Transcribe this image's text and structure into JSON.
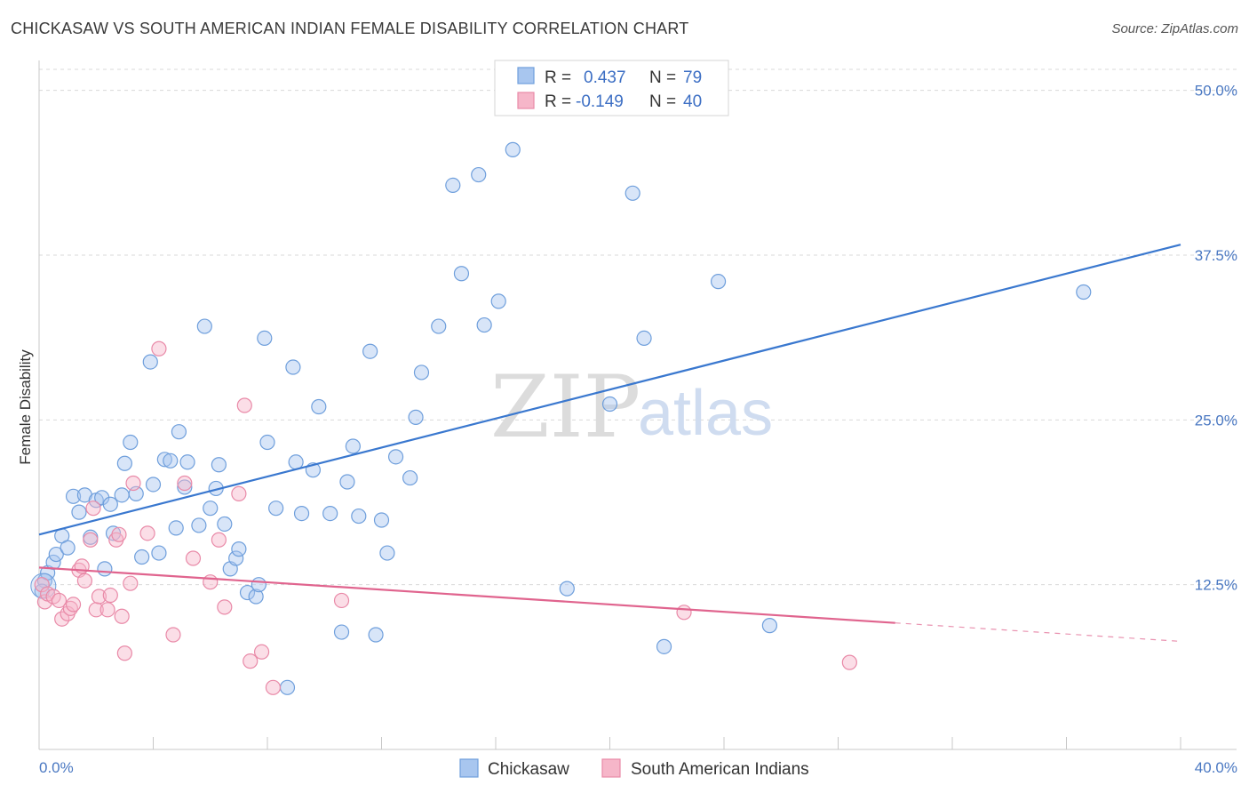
{
  "title": "CHICKASAW VS SOUTH AMERICAN INDIAN FEMALE DISABILITY CORRELATION CHART",
  "source": "Source: ZipAtlas.com",
  "watermark": {
    "part1": "ZIP",
    "part2": "atlas"
  },
  "colors": {
    "chickasaw_fill": "#a8c6ef",
    "chickasaw_stroke": "#6f9fdc",
    "chickasaw_line": "#3a78cf",
    "sai_fill": "#f6b6c9",
    "sai_stroke": "#e98aa8",
    "sai_line": "#e0648e",
    "grid": "#d9d9d9",
    "tick_label": "#4a78c2"
  },
  "legend": {
    "rows": [
      {
        "r_label": "R =",
        "r_value": "0.437",
        "n_label": "N =",
        "n_value": "79"
      },
      {
        "r_label": "R =",
        "r_value": "-0.149",
        "n_label": "N =",
        "n_value": "40"
      }
    ]
  },
  "chart_data": {
    "type": "scatter",
    "title": "CHICKASAW VS SOUTH AMERICAN INDIAN FEMALE DISABILITY CORRELATION CHART",
    "xlabel": "",
    "ylabel": "Female Disability",
    "xlim": [
      0,
      40
    ],
    "ylim": [
      0,
      52
    ],
    "x_tick_labels": [
      "0.0%",
      "40.0%"
    ],
    "y_ticks": [
      12.5,
      25.0,
      37.5,
      50.0
    ],
    "y_tick_labels": [
      "12.5%",
      "25.0%",
      "37.5%",
      "50.0%"
    ],
    "grid": true,
    "legend_placement": "top-center",
    "series": [
      {
        "name": "Chickasaw",
        "trend": {
          "x": [
            0,
            40
          ],
          "y": [
            16.3,
            38.3
          ]
        },
        "points": [
          [
            0.2,
            12.8
          ],
          [
            0.3,
            13.4
          ],
          [
            0.5,
            14.2
          ],
          [
            0.6,
            14.8
          ],
          [
            0.8,
            16.2
          ],
          [
            1.0,
            15.3
          ],
          [
            1.2,
            19.2
          ],
          [
            1.4,
            18.0
          ],
          [
            1.6,
            19.3
          ],
          [
            1.8,
            16.1
          ],
          [
            2.0,
            18.9
          ],
          [
            2.2,
            19.1
          ],
          [
            2.3,
            13.7
          ],
          [
            2.5,
            18.6
          ],
          [
            2.6,
            16.4
          ],
          [
            2.9,
            19.3
          ],
          [
            3.0,
            21.7
          ],
          [
            3.2,
            23.3
          ],
          [
            3.4,
            19.4
          ],
          [
            3.6,
            14.6
          ],
          [
            3.9,
            29.4
          ],
          [
            4.0,
            20.1
          ],
          [
            4.2,
            14.9
          ],
          [
            4.4,
            22.0
          ],
          [
            4.6,
            21.9
          ],
          [
            4.8,
            16.8
          ],
          [
            4.9,
            24.1
          ],
          [
            5.1,
            19.9
          ],
          [
            5.2,
            21.8
          ],
          [
            5.6,
            17.0
          ],
          [
            5.8,
            32.1
          ],
          [
            6.0,
            18.3
          ],
          [
            6.2,
            19.8
          ],
          [
            6.3,
            21.6
          ],
          [
            6.5,
            17.1
          ],
          [
            6.7,
            13.7
          ],
          [
            6.9,
            14.5
          ],
          [
            7.0,
            15.2
          ],
          [
            7.3,
            11.9
          ],
          [
            7.6,
            11.6
          ],
          [
            7.7,
            12.5
          ],
          [
            7.9,
            31.2
          ],
          [
            8.0,
            23.3
          ],
          [
            8.3,
            18.3
          ],
          [
            8.7,
            4.7
          ],
          [
            8.9,
            29.0
          ],
          [
            9.0,
            21.8
          ],
          [
            9.2,
            17.9
          ],
          [
            9.6,
            21.2
          ],
          [
            9.8,
            26.0
          ],
          [
            10.2,
            17.9
          ],
          [
            10.6,
            8.9
          ],
          [
            10.8,
            20.3
          ],
          [
            11.0,
            23.0
          ],
          [
            11.2,
            17.7
          ],
          [
            11.6,
            30.2
          ],
          [
            11.8,
            8.7
          ],
          [
            12.0,
            17.4
          ],
          [
            12.2,
            14.9
          ],
          [
            12.5,
            22.2
          ],
          [
            13.0,
            20.6
          ],
          [
            13.2,
            25.2
          ],
          [
            13.4,
            28.6
          ],
          [
            14.0,
            32.1
          ],
          [
            14.5,
            42.8
          ],
          [
            14.8,
            36.1
          ],
          [
            15.4,
            43.6
          ],
          [
            15.6,
            32.2
          ],
          [
            16.1,
            34.0
          ],
          [
            16.6,
            45.5
          ],
          [
            18.5,
            12.2
          ],
          [
            20.0,
            26.2
          ],
          [
            20.8,
            42.2
          ],
          [
            21.2,
            31.2
          ],
          [
            21.9,
            7.8
          ],
          [
            23.8,
            35.5
          ],
          [
            25.6,
            9.4
          ],
          [
            36.6,
            34.7
          ],
          [
            0.1,
            12.0
          ]
        ]
      },
      {
        "name": "South American Indians",
        "trend": {
          "x": [
            0,
            30
          ],
          "y": [
            13.8,
            9.6
          ]
        },
        "trend_dashed": {
          "x": [
            30,
            40
          ],
          "y": [
            9.6,
            8.2
          ]
        },
        "points": [
          [
            0.1,
            12.5
          ],
          [
            0.2,
            11.2
          ],
          [
            0.3,
            11.8
          ],
          [
            0.5,
            11.6
          ],
          [
            0.7,
            11.3
          ],
          [
            0.8,
            9.9
          ],
          [
            1.0,
            10.3
          ],
          [
            1.1,
            10.7
          ],
          [
            1.2,
            11.0
          ],
          [
            1.4,
            13.6
          ],
          [
            1.5,
            13.9
          ],
          [
            1.6,
            12.8
          ],
          [
            1.8,
            15.9
          ],
          [
            1.9,
            18.3
          ],
          [
            2.0,
            10.6
          ],
          [
            2.1,
            11.6
          ],
          [
            2.4,
            10.6
          ],
          [
            2.5,
            11.7
          ],
          [
            2.7,
            15.9
          ],
          [
            2.8,
            16.3
          ],
          [
            2.9,
            10.1
          ],
          [
            3.0,
            7.3
          ],
          [
            3.2,
            12.6
          ],
          [
            3.3,
            20.2
          ],
          [
            3.8,
            16.4
          ],
          [
            4.2,
            30.4
          ],
          [
            4.7,
            8.7
          ],
          [
            5.1,
            20.2
          ],
          [
            5.4,
            14.5
          ],
          [
            6.0,
            12.7
          ],
          [
            6.3,
            15.9
          ],
          [
            6.5,
            10.8
          ],
          [
            7.0,
            19.4
          ],
          [
            7.2,
            26.1
          ],
          [
            7.4,
            6.7
          ],
          [
            7.8,
            7.4
          ],
          [
            8.2,
            4.7
          ],
          [
            10.6,
            11.3
          ],
          [
            22.6,
            10.4
          ],
          [
            28.4,
            6.6
          ]
        ]
      }
    ]
  },
  "bottom_legend": [
    "Chickasaw",
    "South American Indians"
  ]
}
